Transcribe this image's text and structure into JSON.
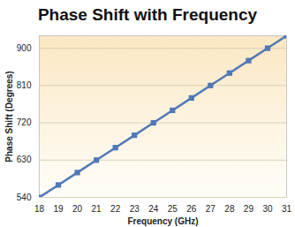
{
  "chart_data": {
    "type": "line",
    "title": "Phase Shift with Frequency",
    "x_label": "Frequency (GHz)",
    "y_label": "Phase Shift (Degrees)",
    "x": [
      18,
      19,
      20,
      21,
      22,
      23,
      24,
      25,
      26,
      27,
      28,
      29,
      30,
      31
    ],
    "series": [
      {
        "name": "Phase Shift",
        "color": "#4f78b8",
        "marker": "square",
        "values": [
          540,
          570,
          600,
          630,
          660,
          690,
          720,
          750,
          780,
          810,
          840,
          870,
          900,
          930
        ]
      }
    ],
    "xlim": [
      18,
      31
    ],
    "xticks": [
      18,
      19,
      20,
      21,
      22,
      23,
      24,
      25,
      26,
      27,
      28,
      29,
      30,
      31
    ],
    "ylim": [
      540,
      930
    ],
    "yticks": [
      540,
      630,
      720,
      810,
      900
    ],
    "grid": true
  }
}
